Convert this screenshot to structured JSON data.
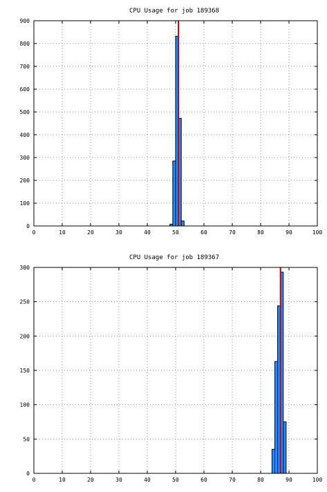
{
  "chart_data": [
    {
      "type": "bar",
      "title": "CPU Usage for job 189368",
      "xlabel": "",
      "ylabel": "",
      "xlim": [
        0,
        100
      ],
      "ylim": [
        0,
        900
      ],
      "xticks": [
        0,
        10,
        20,
        30,
        40,
        50,
        60,
        70,
        80,
        90,
        100
      ],
      "yticks": [
        0,
        100,
        200,
        300,
        400,
        500,
        600,
        700,
        800,
        900
      ],
      "grid": true,
      "bin_width": 1,
      "bars": [
        {
          "x": 48.5,
          "value": 8
        },
        {
          "x": 49.5,
          "value": 285
        },
        {
          "x": 50.5,
          "value": 832
        },
        {
          "x": 51.5,
          "value": 472
        },
        {
          "x": 52.5,
          "value": 22
        }
      ],
      "marker_line": {
        "x": 51,
        "color": "#cc0000"
      },
      "bar_color": "#1e8fff"
    },
    {
      "type": "bar",
      "title": "CPU Usage for job 189367",
      "xlabel": "",
      "ylabel": "",
      "xlim": [
        0,
        100
      ],
      "ylim": [
        0,
        300
      ],
      "xticks": [
        0,
        10,
        20,
        30,
        40,
        50,
        60,
        70,
        80,
        90,
        100
      ],
      "yticks": [
        0,
        50,
        100,
        150,
        200,
        250,
        300
      ],
      "grid": true,
      "bin_width": 1,
      "bars": [
        {
          "x": 84.5,
          "value": 35
        },
        {
          "x": 85.5,
          "value": 163
        },
        {
          "x": 86.5,
          "value": 244
        },
        {
          "x": 87.5,
          "value": 293
        },
        {
          "x": 88.5,
          "value": 75
        }
      ],
      "marker_line": {
        "x": 87,
        "color": "#cc0000"
      },
      "bar_color": "#1e8fff"
    }
  ]
}
